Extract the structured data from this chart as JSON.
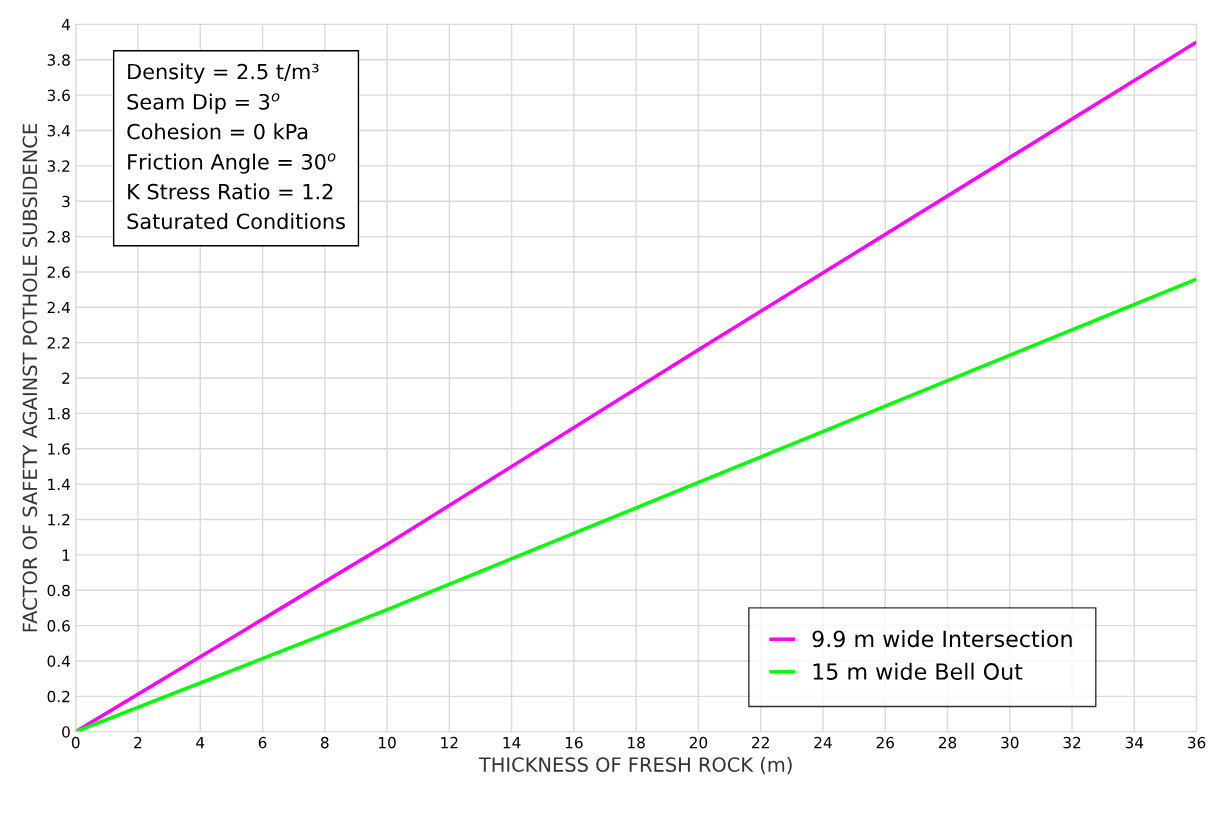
{
  "chart_data": {
    "type": "line",
    "xlabel": "THICKNESS OF FRESH ROCK (m)",
    "ylabel": "FACTOR OF SAFETY AGAINST POTHOLE SUBSIDENCE",
    "x": [
      0,
      10,
      20,
      36
    ],
    "series": [
      {
        "name": "9.9 m wide Intersection",
        "color": "#ff00ff",
        "values": [
          0,
          1.06,
          2.16,
          3.9
        ]
      },
      {
        "name": "15 m wide Bell Out",
        "color": "#00ff00",
        "values": [
          0,
          0.69,
          1.41,
          2.56
        ]
      }
    ],
    "xlim": [
      0,
      36
    ],
    "xticks": [
      0,
      2,
      4,
      6,
      8,
      10,
      12,
      14,
      16,
      18,
      20,
      22,
      24,
      26,
      28,
      30,
      32,
      34,
      36
    ],
    "ylim": [
      0,
      4
    ],
    "yticks": [
      0,
      0.2,
      0.4,
      0.6,
      0.8,
      1,
      1.2,
      1.4,
      1.6,
      1.8,
      2,
      2.2,
      2.4,
      2.6,
      2.8,
      3,
      3.2,
      3.4,
      3.6,
      3.8,
      4
    ],
    "grid": true,
    "legend": "bottom right",
    "marker": "none",
    "line_style": "solid",
    "annotations": [
      "Density = 2.5 t/m³",
      "Seam Dip = 3$^{o}$",
      "Cohesion = 0 kPa",
      "Friction Angle = 30$^{o}$",
      "K Stress Ratio = 1.2",
      "Saturated Conditions"
    ]
  }
}
